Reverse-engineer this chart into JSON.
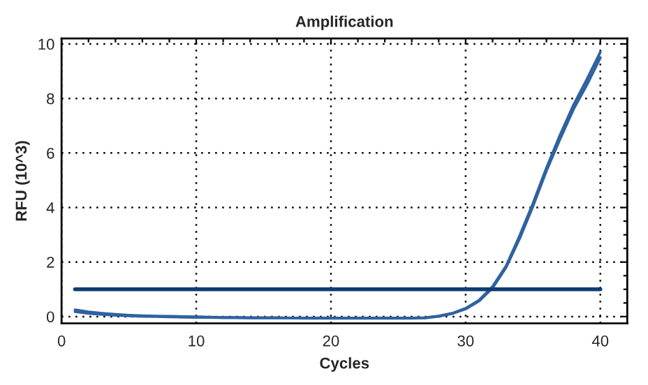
{
  "chart_data": {
    "type": "line",
    "title": "Amplification",
    "xlabel": "Cycles",
    "ylabel": "RFU (10^3)",
    "x": [
      1,
      2,
      3,
      4,
      5,
      6,
      7,
      8,
      9,
      10,
      11,
      12,
      13,
      14,
      15,
      16,
      17,
      18,
      19,
      20,
      21,
      22,
      23,
      24,
      25,
      26,
      27,
      28,
      29,
      30,
      31,
      32,
      33,
      34,
      35,
      36,
      37,
      38,
      39,
      40
    ],
    "series": [
      {
        "color": "#2f62a0",
        "values": [
          0.25,
          0.17,
          0.12,
          0.08,
          0.05,
          0.03,
          0.02,
          0.01,
          0,
          -0.01,
          -0.02,
          -0.03,
          -0.03,
          -0.04,
          -0.04,
          -0.04,
          -0.05,
          -0.05,
          -0.05,
          -0.05,
          -0.05,
          -0.05,
          -0.05,
          -0.05,
          -0.05,
          -0.05,
          -0.04,
          0.02,
          0.12,
          0.3,
          0.6,
          1.1,
          1.85,
          2.95,
          4.15,
          5.45,
          6.65,
          7.75,
          8.7,
          9.7
        ]
      },
      {
        "color": "#2f62a0",
        "values": [
          0.18,
          0.12,
          0.08,
          0.05,
          0.03,
          0.01,
          0,
          -0.01,
          -0.02,
          -0.03,
          -0.03,
          -0.04,
          -0.04,
          -0.05,
          -0.05,
          -0.05,
          -0.05,
          -0.06,
          -0.06,
          -0.06,
          -0.06,
          -0.06,
          -0.06,
          -0.06,
          -0.06,
          -0.06,
          -0.05,
          0.01,
          0.11,
          0.28,
          0.57,
          1.05,
          1.8,
          2.85,
          4.05,
          5.35,
          6.5,
          7.6,
          8.5,
          9.5
        ]
      },
      {
        "color": "#0d3d73",
        "x": [
          1,
          40
        ],
        "values": [
          1,
          1
        ]
      }
    ],
    "xlim": [
      0,
      42
    ],
    "xticks": [
      0,
      10,
      20,
      30,
      40
    ],
    "ylim": [
      -0.25,
      10.2
    ],
    "yticks": [
      0,
      2,
      4,
      6,
      8,
      10
    ],
    "grid": true,
    "line_style": "solid",
    "marker": "none"
  }
}
